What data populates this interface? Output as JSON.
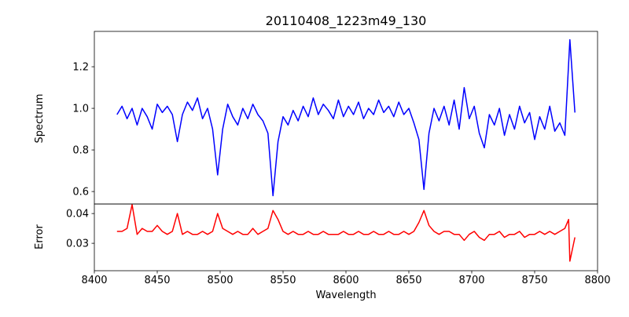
{
  "chart_data": {
    "type": "line",
    "title": "20110408_1223m49_130",
    "xlabel": "Wavelength",
    "xlim": [
      8400,
      8800
    ],
    "xticks": [
      "8400",
      "8450",
      "8500",
      "8550",
      "8600",
      "8650",
      "8700",
      "8750",
      "8800"
    ],
    "panels": [
      {
        "ylabel": "Spectrum",
        "ylim": [
          0.54,
          1.37
        ],
        "yticks": [
          "0.6",
          "0.8",
          "1.0",
          "1.2"
        ],
        "ytick_values": [
          0.6,
          0.8,
          1.0,
          1.2
        ],
        "color": "#0000ff",
        "x": [
          8418,
          8422,
          8426,
          8430,
          8434,
          8438,
          8442,
          8446,
          8450,
          8454,
          8458,
          8462,
          8466,
          8470,
          8474,
          8478,
          8482,
          8486,
          8490,
          8494,
          8498,
          8502,
          8506,
          8510,
          8514,
          8518,
          8522,
          8526,
          8530,
          8534,
          8538,
          8542,
          8546,
          8550,
          8554,
          8558,
          8562,
          8566,
          8570,
          8574,
          8578,
          8582,
          8586,
          8590,
          8594,
          8598,
          8602,
          8606,
          8610,
          8614,
          8618,
          8622,
          8626,
          8630,
          8634,
          8638,
          8642,
          8646,
          8650,
          8654,
          8658,
          8662,
          8666,
          8670,
          8674,
          8678,
          8682,
          8686,
          8690,
          8694,
          8698,
          8702,
          8706,
          8710,
          8714,
          8718,
          8722,
          8726,
          8730,
          8734,
          8738,
          8742,
          8746,
          8750,
          8754,
          8758,
          8762,
          8766,
          8770,
          8774,
          8778,
          8782
        ],
        "y": [
          0.97,
          1.01,
          0.95,
          1.0,
          0.92,
          1.0,
          0.96,
          0.9,
          1.02,
          0.98,
          1.01,
          0.97,
          0.84,
          0.97,
          1.03,
          0.99,
          1.05,
          0.95,
          1.0,
          0.9,
          0.68,
          0.9,
          1.02,
          0.96,
          0.92,
          1.0,
          0.95,
          1.02,
          0.97,
          0.94,
          0.88,
          0.58,
          0.84,
          0.96,
          0.92,
          0.99,
          0.94,
          1.01,
          0.96,
          1.05,
          0.97,
          1.02,
          0.99,
          0.95,
          1.04,
          0.96,
          1.01,
          0.97,
          1.03,
          0.95,
          1.0,
          0.97,
          1.04,
          0.98,
          1.01,
          0.96,
          1.03,
          0.97,
          1.0,
          0.93,
          0.85,
          0.61,
          0.88,
          1.0,
          0.94,
          1.01,
          0.92,
          1.04,
          0.9,
          1.1,
          0.95,
          1.01,
          0.88,
          0.81,
          0.97,
          0.92,
          1.0,
          0.87,
          0.97,
          0.9,
          1.01,
          0.93,
          0.98,
          0.85,
          0.96,
          0.9,
          1.01,
          0.89,
          0.93,
          0.87,
          1.33,
          0.98
        ]
      },
      {
        "ylabel": "Error",
        "ylim": [
          0.0208,
          0.0432
        ],
        "yticks": [
          "0.03",
          "0.04"
        ],
        "ytick_values": [
          0.03,
          0.04
        ],
        "color": "#ff0000",
        "x": [
          8418,
          8422,
          8426,
          8430,
          8434,
          8438,
          8442,
          8446,
          8450,
          8454,
          8458,
          8462,
          8466,
          8470,
          8474,
          8478,
          8482,
          8486,
          8490,
          8494,
          8498,
          8502,
          8506,
          8510,
          8514,
          8518,
          8522,
          8526,
          8530,
          8534,
          8538,
          8542,
          8546,
          8550,
          8554,
          8558,
          8562,
          8566,
          8570,
          8574,
          8578,
          8582,
          8586,
          8590,
          8594,
          8598,
          8602,
          8606,
          8610,
          8614,
          8618,
          8622,
          8626,
          8630,
          8634,
          8638,
          8642,
          8646,
          8650,
          8654,
          8658,
          8662,
          8666,
          8670,
          8674,
          8678,
          8682,
          8686,
          8690,
          8694,
          8698,
          8702,
          8706,
          8710,
          8714,
          8718,
          8722,
          8726,
          8730,
          8734,
          8738,
          8742,
          8746,
          8750,
          8754,
          8758,
          8762,
          8766,
          8770,
          8774,
          8777,
          8778,
          8782
        ],
        "y": [
          0.034,
          0.034,
          0.035,
          0.043,
          0.033,
          0.035,
          0.034,
          0.034,
          0.036,
          0.034,
          0.033,
          0.034,
          0.04,
          0.033,
          0.034,
          0.033,
          0.033,
          0.034,
          0.033,
          0.034,
          0.04,
          0.035,
          0.034,
          0.033,
          0.034,
          0.033,
          0.033,
          0.035,
          0.033,
          0.034,
          0.035,
          0.041,
          0.038,
          0.034,
          0.033,
          0.034,
          0.033,
          0.033,
          0.034,
          0.033,
          0.033,
          0.034,
          0.033,
          0.033,
          0.033,
          0.034,
          0.033,
          0.033,
          0.034,
          0.033,
          0.033,
          0.034,
          0.033,
          0.033,
          0.034,
          0.033,
          0.033,
          0.034,
          0.033,
          0.034,
          0.037,
          0.041,
          0.036,
          0.034,
          0.033,
          0.034,
          0.034,
          0.033,
          0.033,
          0.031,
          0.033,
          0.034,
          0.032,
          0.031,
          0.033,
          0.033,
          0.034,
          0.032,
          0.033,
          0.033,
          0.034,
          0.032,
          0.033,
          0.033,
          0.034,
          0.033,
          0.034,
          0.033,
          0.034,
          0.035,
          0.038,
          0.024,
          0.032
        ]
      }
    ]
  }
}
